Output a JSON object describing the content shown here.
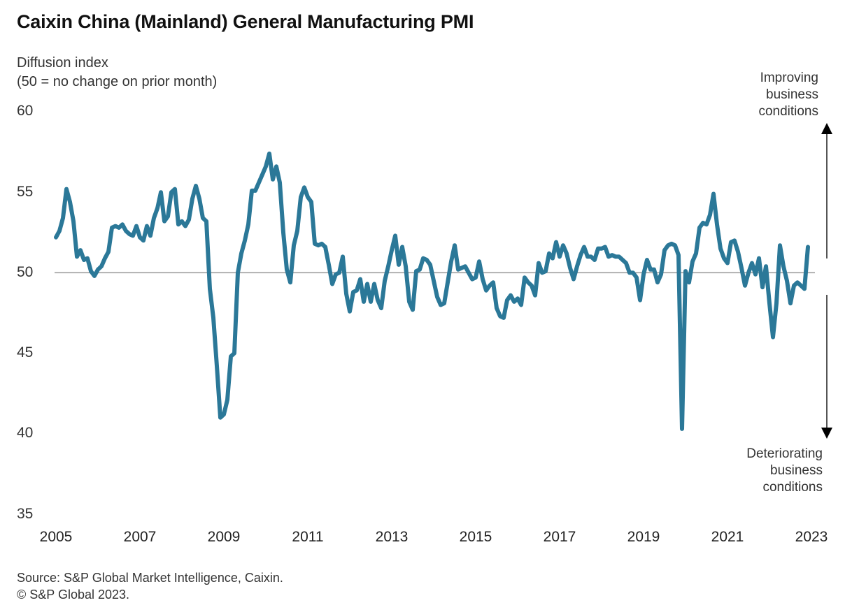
{
  "chart_data": {
    "type": "line",
    "title": "Caixin China (Mainland) General Manufacturing PMI",
    "ylabel_lines": [
      "Diffusion index",
      "(50 = no change on prior month)"
    ],
    "xlabel": "",
    "ylim": [
      35,
      60
    ],
    "yticks": [
      60,
      55,
      50,
      45,
      40,
      35
    ],
    "xticks": [
      "2005",
      "2007",
      "2009",
      "2011",
      "2013",
      "2015",
      "2017",
      "2019",
      "2021",
      "2023"
    ],
    "x_start": "2005-01",
    "x_frequency": "monthly",
    "reference_line": 50,
    "grid": false,
    "series": [
      {
        "name": "Caixin China General Manufacturing PMI",
        "color": "#2b7898",
        "values": [
          52.2,
          52.6,
          53.4,
          55.2,
          54.4,
          53.2,
          51.0,
          51.4,
          50.8,
          50.9,
          50.1,
          49.8,
          50.2,
          50.4,
          50.9,
          51.3,
          52.8,
          52.9,
          52.8,
          53.0,
          52.6,
          52.4,
          52.3,
          52.9,
          52.2,
          52.0,
          52.9,
          52.3,
          53.4,
          54.0,
          55.0,
          53.2,
          53.5,
          55.0,
          55.2,
          53.0,
          53.2,
          52.9,
          53.3,
          54.6,
          55.4,
          54.6,
          53.4,
          53.2,
          49.0,
          47.2,
          44.2,
          41.0,
          41.2,
          42.1,
          44.8,
          45.0,
          50.0,
          51.2,
          52.0,
          53.0,
          55.1,
          55.1,
          55.6,
          56.1,
          56.6,
          57.4,
          55.8,
          56.6,
          55.6,
          52.5,
          50.2,
          49.4,
          51.7,
          52.6,
          54.7,
          55.3,
          54.7,
          54.4,
          51.8,
          51.7,
          51.8,
          51.6,
          50.5,
          49.3,
          49.9,
          50.0,
          51.0,
          48.7,
          47.6,
          48.8,
          48.9,
          49.6,
          48.2,
          49.3,
          48.2,
          49.3,
          48.3,
          47.8,
          49.5,
          50.4,
          51.4,
          52.3,
          50.5,
          51.6,
          50.4,
          48.2,
          47.7,
          50.1,
          50.2,
          50.9,
          50.8,
          50.5,
          49.5,
          48.5,
          48.0,
          48.1,
          49.4,
          50.7,
          51.7,
          50.2,
          50.3,
          50.4,
          50.0,
          49.6,
          49.7,
          50.7,
          49.6,
          48.9,
          49.2,
          49.4,
          47.8,
          47.3,
          47.2,
          48.3,
          48.6,
          48.2,
          48.4,
          48.0,
          49.7,
          49.4,
          49.2,
          48.6,
          50.6,
          50.0,
          50.1,
          51.2,
          50.9,
          51.9,
          51.0,
          51.7,
          51.2,
          50.3,
          49.6,
          50.4,
          51.1,
          51.6,
          51.0,
          51.0,
          50.8,
          51.5,
          51.5,
          51.6,
          51.0,
          51.1,
          51.0,
          51.0,
          50.8,
          50.6,
          50.0,
          50.0,
          49.7,
          48.3,
          49.9,
          50.8,
          50.2,
          50.2,
          49.4,
          49.9,
          51.4,
          51.7,
          51.8,
          51.7,
          51.1,
          40.3,
          50.1,
          49.4,
          50.7,
          51.2,
          52.8,
          53.1,
          53.0,
          53.6,
          54.9,
          53.0,
          51.5,
          50.9,
          50.6,
          51.9,
          52.0,
          51.3,
          50.3,
          49.2,
          50.0,
          50.6,
          49.9,
          50.9,
          49.1,
          50.4,
          48.1,
          46.0,
          48.1,
          51.7,
          50.4,
          49.5,
          48.1,
          49.2,
          49.4,
          49.2,
          49.0,
          51.6
        ]
      }
    ],
    "annotations": {
      "up": [
        "Improving",
        "business",
        "conditions"
      ],
      "down": [
        "Deteriorating",
        "business",
        "conditions"
      ]
    }
  },
  "source": {
    "line1": "Source: S&P Global Market Intelligence,  Caixin.",
    "line2": "© S&P Global 2023."
  }
}
